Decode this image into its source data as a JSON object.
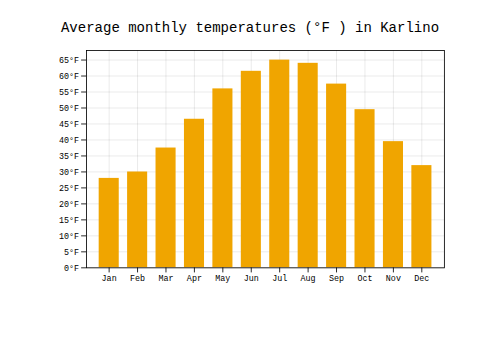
{
  "chart_data": {
    "type": "bar",
    "title": "Average monthly temperatures (°F ) in Karlino",
    "categories": [
      "Jan",
      "Feb",
      "Mar",
      "Apr",
      "May",
      "Jun",
      "Jul",
      "Aug",
      "Sep",
      "Oct",
      "Nov",
      "Dec"
    ],
    "values": [
      28,
      30,
      37.5,
      46.5,
      56,
      61.5,
      65,
      64,
      57.5,
      49.5,
      39.5,
      32
    ],
    "color": "#F0A500",
    "ylim": [
      0,
      68
    ],
    "yticks": [
      {
        "value": 0,
        "label": "0°F"
      },
      {
        "value": 5,
        "label": "5°F"
      },
      {
        "value": 10,
        "label": "10°F"
      },
      {
        "value": 15,
        "label": "15°F"
      },
      {
        "value": 20,
        "label": "20°F"
      },
      {
        "value": 25,
        "label": "25°F"
      },
      {
        "value": 30,
        "label": "30°F"
      },
      {
        "value": 35,
        "label": "35°F"
      },
      {
        "value": 40,
        "label": "40°F"
      },
      {
        "value": 45,
        "label": "45°F"
      },
      {
        "value": 50,
        "label": "50°F"
      },
      {
        "value": 55,
        "label": "55°F"
      },
      {
        "value": 60,
        "label": "60°F"
      },
      {
        "value": 65,
        "label": "65°F"
      }
    ],
    "grid": true
  }
}
